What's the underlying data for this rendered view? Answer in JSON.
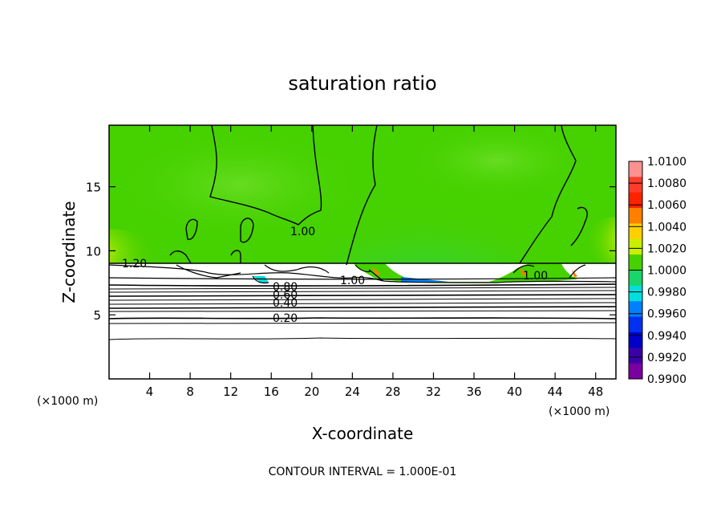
{
  "chart_data": {
    "type": "heatmap",
    "title": "saturation ratio",
    "xlabel": "X-coordinate",
    "ylabel": "Z-coordinate",
    "x_unit_label": "(×1000 m)",
    "y_unit_label": "(×1000 m)",
    "xlim": [
      0,
      50
    ],
    "ylim": [
      0,
      19.8
    ],
    "xticks": [
      4,
      8,
      12,
      16,
      20,
      24,
      28,
      32,
      36,
      40,
      44,
      48
    ],
    "yticks": [
      5,
      10,
      15
    ],
    "colorbar": {
      "labels": [
        "1.0100",
        "1.0080",
        "1.0060",
        "1.0040",
        "1.0020",
        "1.0000",
        "0.9980",
        "0.9960",
        "0.9940",
        "0.9920",
        "0.9900"
      ],
      "colors": [
        "#ff9090",
        "#ff3c2a",
        "#ff2200",
        "#ff8000",
        "#ffd000",
        "#c8ee00",
        "#46d100",
        "#19d56a",
        "#00dede",
        "#0080ff",
        "#0030f0",
        "#0000c8",
        "#3a00a8",
        "#7a00a0"
      ]
    },
    "contour_labels": [
      {
        "text": "1.20",
        "x": 1.8,
        "z": 9.2
      },
      {
        "text": "1.00",
        "x": 18.9,
        "z": 11.7
      },
      {
        "text": "1.00",
        "x": 24.0,
        "z": 7.8
      },
      {
        "text": "1.00",
        "x": 42.0,
        "z": 8.3
      },
      {
        "text": "0.80",
        "x": 17.5,
        "z": 7.5
      },
      {
        "text": "0.60",
        "x": 17.5,
        "z": 6.9
      },
      {
        "text": "0.40",
        "x": 17.5,
        "z": 6.1
      },
      {
        "text": "0.20",
        "x": 17.5,
        "z": 4.8
      }
    ],
    "footer": "CONTOUR INTERVAL = 1.000E-01"
  }
}
